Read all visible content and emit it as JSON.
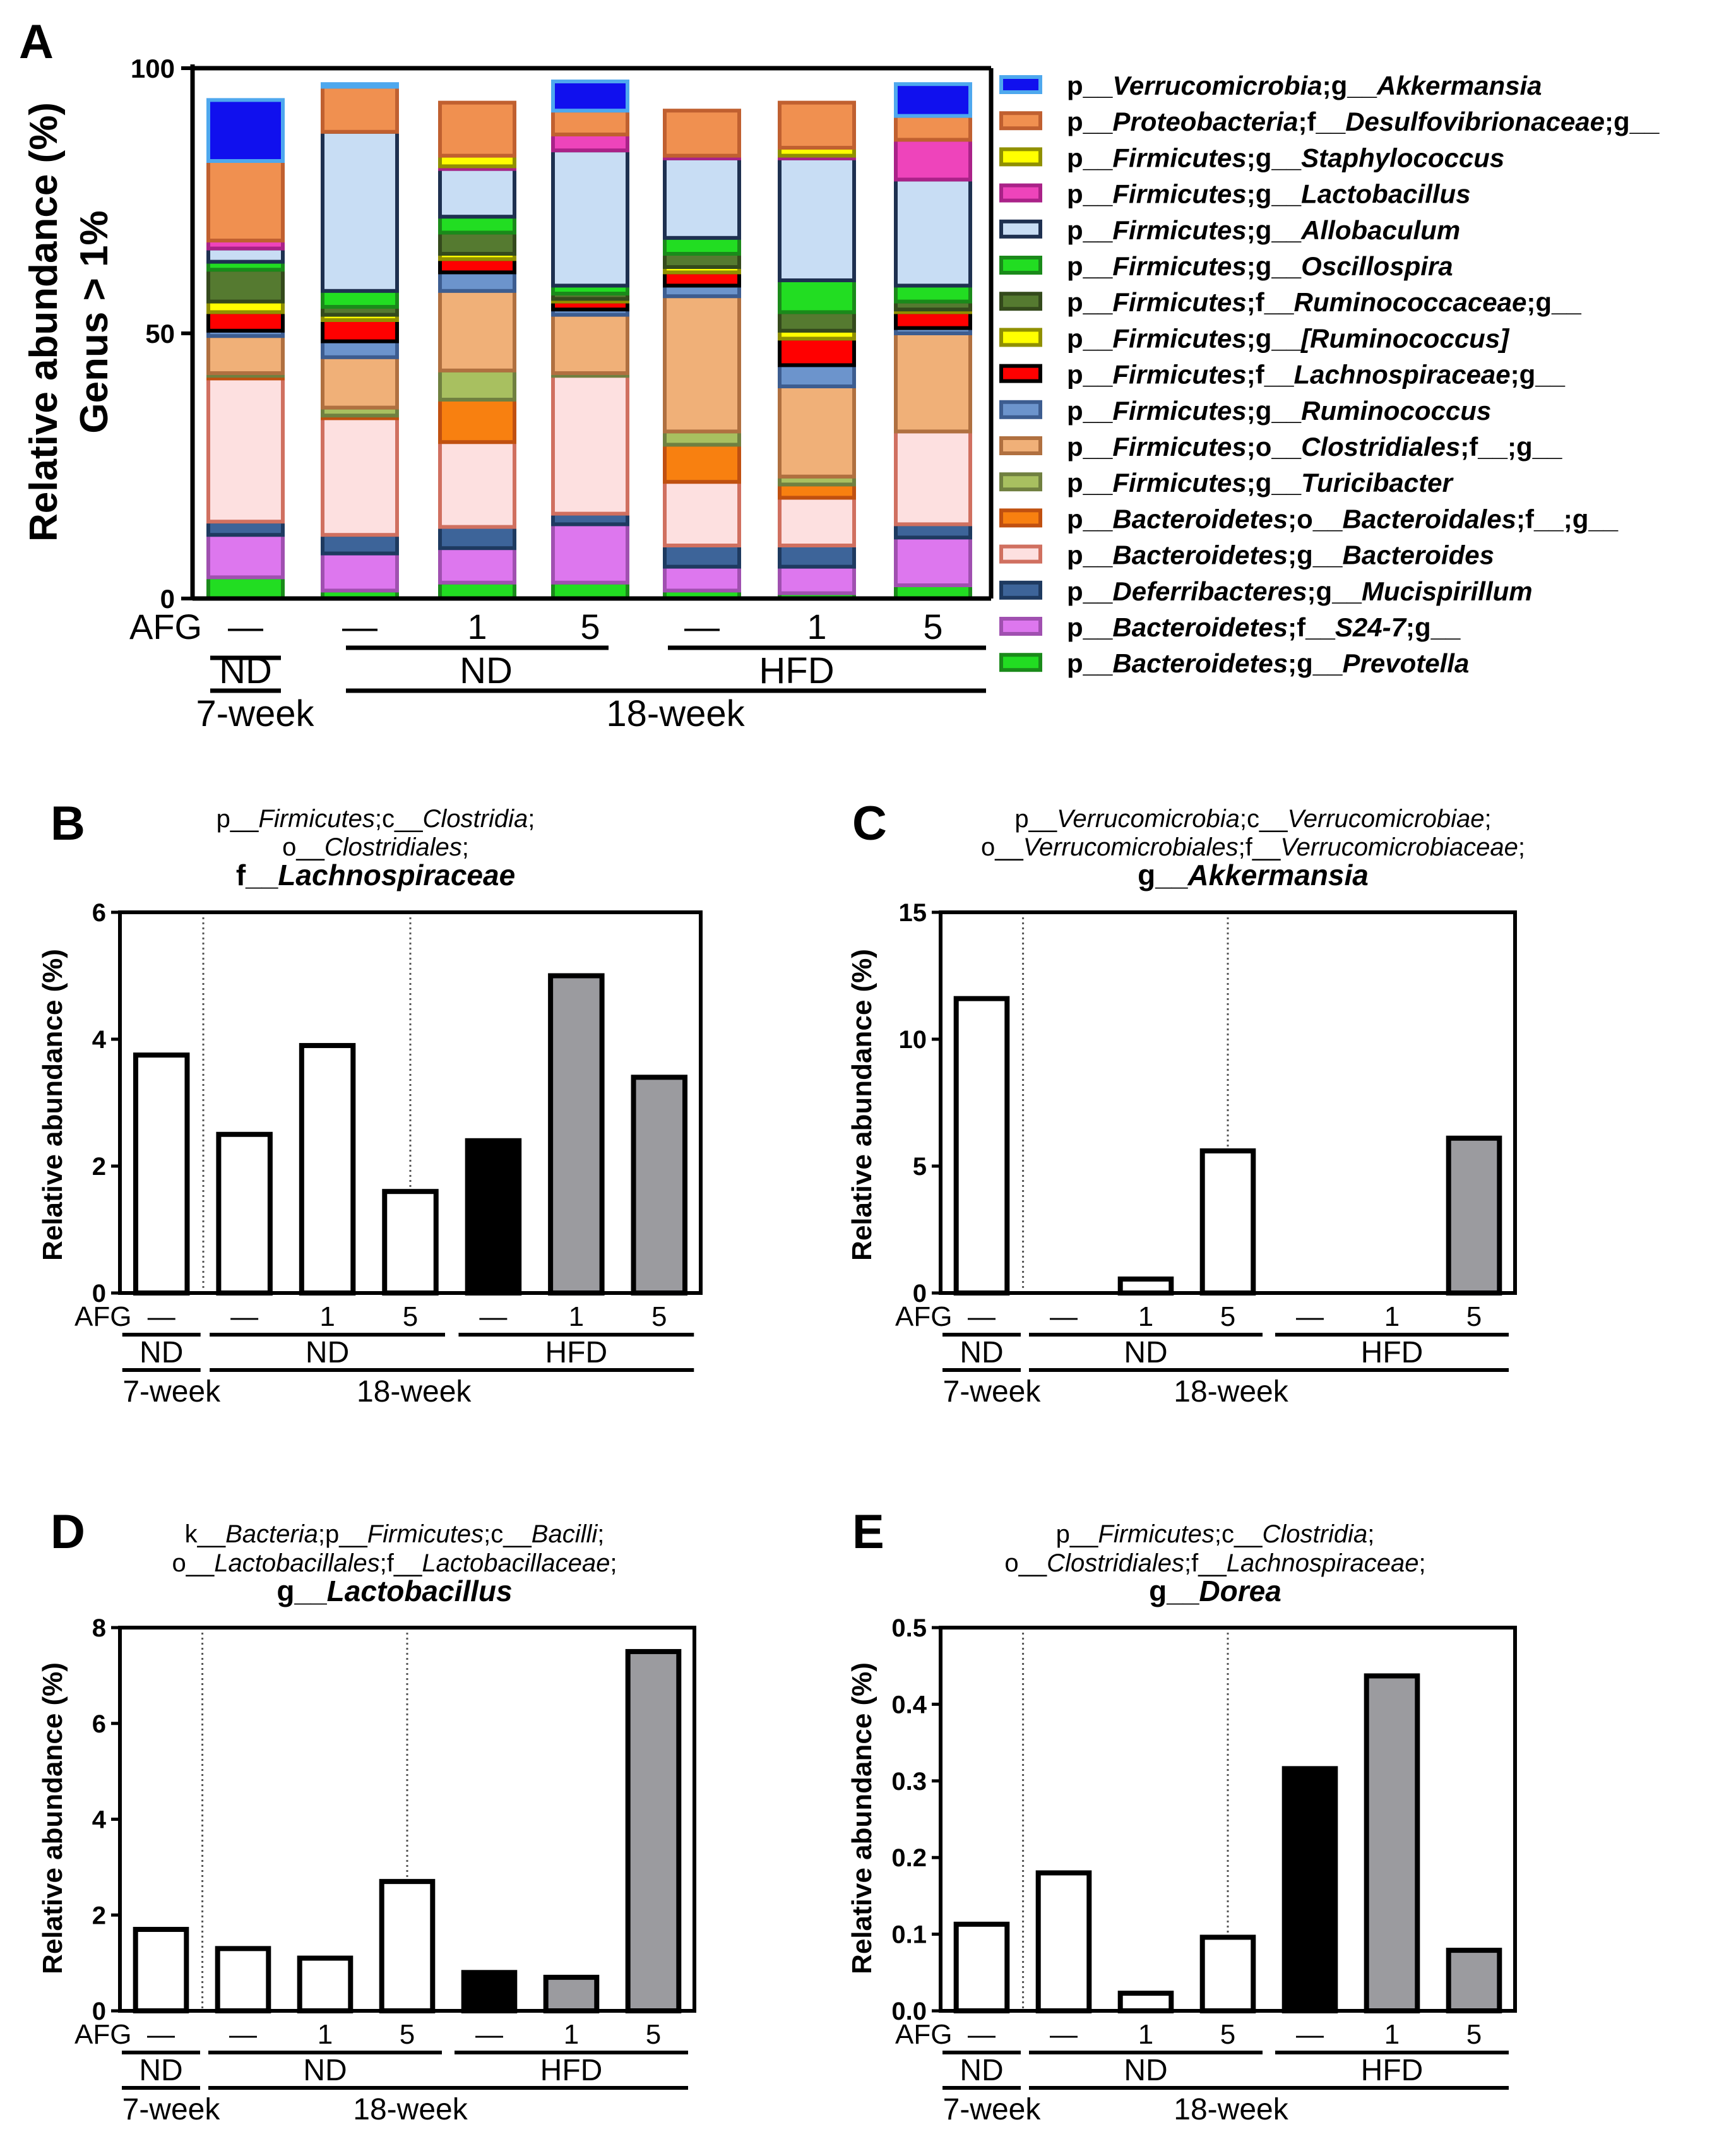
{
  "panel_a": {
    "label": "A",
    "ylabel_line1": "Relative abundance (%)",
    "ylabel_line2": "Genus > 1%",
    "ticks": [
      "0",
      "50",
      "100"
    ],
    "afg_label": "AFG",
    "afg_doses": [
      "—",
      "—",
      "1",
      "5",
      "—",
      "1",
      "5"
    ],
    "group_nd_7wk": "ND",
    "group_nd": "ND",
    "group_hfd": "HFD",
    "age_7wk": "7-week",
    "age_18wk": "18-week"
  },
  "chart_data": [
    {
      "panel": "A",
      "type": "bar",
      "stacked": true,
      "ylabel": "Relative abundance (%) Genus > 1%",
      "ylim": [
        0,
        100
      ],
      "categories": [
        "7-week ND",
        "18-week ND AFG -",
        "18-week ND AFG 1",
        "18-week ND AFG 5",
        "18-week HFD AFG -",
        "18-week HFD AFG 1",
        "18-week HFD AFG 5"
      ],
      "series": [
        {
          "name": "p__Bacteroidetes;g__Prevotella",
          "fill": "#22dd22",
          "stroke": "#1a8a1a",
          "values": [
            4,
            1.5,
            3,
            3,
            1.5,
            1,
            2.5
          ]
        },
        {
          "name": "p__Bacteroidetes;f__S24-7;g__",
          "fill": "#dd77ee",
          "stroke": "#a050b0",
          "values": [
            8,
            7,
            6.5,
            11,
            4.5,
            5,
            9
          ]
        },
        {
          "name": "p__Deferribacteres;g__Mucispirillum",
          "fill": "#3d6499",
          "stroke": "#1e3a60",
          "values": [
            2.5,
            3.5,
            4,
            2,
            4,
            4,
            2.5
          ]
        },
        {
          "name": "p__Bacteroidetes;g__Bacteroides",
          "fill": "#fde0e0",
          "stroke": "#d07060",
          "values": [
            27,
            22,
            16,
            26,
            12,
            9,
            17.5
          ]
        },
        {
          "name": "p__Bacteroidetes;o__Bacteroidales;f__;g__",
          "fill": "#f88010",
          "stroke": "#c05010",
          "values": [
            0.5,
            0.5,
            8,
            0,
            7,
            2.5,
            0
          ]
        },
        {
          "name": "p__Firmicutes;g__Turicibacter",
          "fill": "#a8c060",
          "stroke": "#708040",
          "values": [
            0.5,
            1.5,
            5.5,
            0.5,
            2.5,
            1.5,
            0
          ]
        },
        {
          "name": "p__Firmicutes;o__Clostridiales;f__;g__",
          "fill": "#f0b078",
          "stroke": "#b07040",
          "values": [
            7,
            9.5,
            15,
            11,
            25.5,
            17,
            18.5
          ]
        },
        {
          "name": "p__Firmicutes;g__Ruminococcus",
          "fill": "#6c94cc",
          "stroke": "#3d5d90",
          "values": [
            1,
            3,
            3.5,
            1,
            2,
            4,
            1
          ]
        },
        {
          "name": "p__Firmicutes;f__Lachnospiraceae;g__",
          "fill": "#ff0000",
          "stroke": "#000000",
          "values": [
            3.5,
            4,
            2.5,
            1.5,
            2.5,
            5,
            3
          ]
        },
        {
          "name": "p__Firmicutes;g__[Ruminococcus]",
          "fill": "#ffff00",
          "stroke": "#909000",
          "values": [
            2,
            1,
            1,
            0.5,
            1,
            1.5,
            0.5
          ]
        },
        {
          "name": "p__Firmicutes;f__Ruminococcaceae;g__",
          "fill": "#557a30",
          "stroke": "#344a1c",
          "values": [
            6,
            1.5,
            4,
            1,
            2.5,
            3.5,
            1.5
          ]
        },
        {
          "name": "p__Firmicutes;g__Oscillospira",
          "fill": "#22dd22",
          "stroke": "#1a8a1a",
          "values": [
            1.5,
            3,
            3,
            1.5,
            3,
            6,
            3
          ]
        },
        {
          "name": "p__Firmicutes;g__Allobaculum",
          "fill": "#c8ddf4",
          "stroke": "#1e3050",
          "values": [
            2.5,
            30,
            9,
            25.5,
            15,
            23,
            20
          ]
        },
        {
          "name": "p__Firmicutes;g__Lactobacillus",
          "fill": "#ee44bb",
          "stroke": "#aa2288",
          "values": [
            1.5,
            0,
            0.5,
            3,
            0.5,
            0.5,
            7.5
          ]
        },
        {
          "name": "p__Firmicutes;g__Staphylococcus",
          "fill": "#ffff00",
          "stroke": "#909000",
          "values": [
            0,
            0,
            2,
            0,
            0,
            1.5,
            0
          ]
        },
        {
          "name": "p__Proteobacteria;f__Desulfovibrionaceae;g__",
          "fill": "#f09050",
          "stroke": "#c06030",
          "values": [
            15,
            8.5,
            10,
            4.5,
            8.5,
            8.5,
            4.5
          ]
        },
        {
          "name": "p__Verrucomicrobia;g__Akkermansia",
          "fill": "#1010ee",
          "stroke": "#4ea8ee",
          "values": [
            11.5,
            0.5,
            0,
            5.5,
            0,
            0,
            6
          ]
        }
      ]
    },
    {
      "panel": "B",
      "type": "bar",
      "title_line1": "p__Firmicutes;c__Clostridia;",
      "title_line2": "o__Clostridiales;",
      "title_line3": "f__Lachnospiraceae",
      "ylabel": "Relative abundance (%)",
      "ylim": [
        0,
        6
      ],
      "ticks": [
        "0",
        "2",
        "4",
        "6"
      ],
      "categories": [
        "7-week ND",
        "ND AFG -",
        "ND AFG 1",
        "ND AFG 5",
        "HFD AFG -",
        "HFD AFG 1",
        "HFD AFG 5"
      ],
      "values": [
        3.75,
        2.5,
        3.9,
        1.6,
        2.4,
        5.0,
        3.4
      ]
    },
    {
      "panel": "C",
      "type": "bar",
      "title_line1": "p__Verrucomicrobia;c__Verrucomicrobiae;",
      "title_line2": "o__Verrucomicrobiales;f__Verrucomicrobiaceae;",
      "title_line3": "g__Akkermansia",
      "ylabel": "Relative abundance (%)",
      "ylim": [
        0,
        15
      ],
      "ticks": [
        "0",
        "5",
        "10",
        "15"
      ],
      "categories": [
        "7-week ND",
        "ND AFG -",
        "ND AFG 1",
        "ND AFG 5",
        "HFD AFG -",
        "HFD AFG 1",
        "HFD AFG 5"
      ],
      "values": [
        11.6,
        0,
        0.55,
        5.6,
        0,
        0,
        6.1
      ]
    },
    {
      "panel": "D",
      "type": "bar",
      "title_line1": "k__Bacteria;p__Firmicutes;c__Bacilli;",
      "title_line2": "o__Lactobacillales;f__Lactobacillaceae;",
      "title_line3": "g__Lactobacillus",
      "ylabel": "Relative abundance (%)",
      "ylim": [
        0,
        8
      ],
      "ticks": [
        "0",
        "2",
        "4",
        "6",
        "8"
      ],
      "categories": [
        "7-week ND",
        "ND AFG -",
        "ND AFG 1",
        "ND AFG 5",
        "HFD AFG -",
        "HFD AFG 1",
        "HFD AFG 5"
      ],
      "values": [
        1.7,
        1.3,
        1.1,
        2.7,
        0.8,
        0.7,
        7.5
      ]
    },
    {
      "panel": "E",
      "type": "bar",
      "title_line1": "p__Firmicutes;c__Clostridia;",
      "title_line2": "o__Clostridiales;f__Lachnospiraceae;",
      "title_line3": "g__Dorea",
      "ylabel": "Relative abundance (%)",
      "ylim": [
        0,
        0.5
      ],
      "ticks": [
        "0.0",
        "0.1",
        "0.2",
        "0.3",
        "0.4",
        "0.5"
      ],
      "categories": [
        "7-week ND",
        "ND AFG -",
        "ND AFG 1",
        "ND AFG 5",
        "HFD AFG -",
        "HFD AFG 1",
        "HFD AFG 5"
      ],
      "values": [
        0.113,
        0.18,
        0.023,
        0.096,
        0.316,
        0.437,
        0.079
      ]
    }
  ],
  "small_panels": {
    "afg_label": "AFG",
    "doses": [
      "—",
      "—",
      "1",
      "5",
      "—",
      "1",
      "5"
    ],
    "group_nd_7wk": "ND",
    "group_nd": "ND",
    "group_hfd": "HFD",
    "age_7wk": "7-week",
    "age_18wk": "18-week",
    "bar_colors": [
      "#ffffff",
      "#ffffff",
      "#ffffff",
      "#ffffff",
      "#000000",
      "#9b9b9f",
      "#9b9b9f"
    ]
  }
}
